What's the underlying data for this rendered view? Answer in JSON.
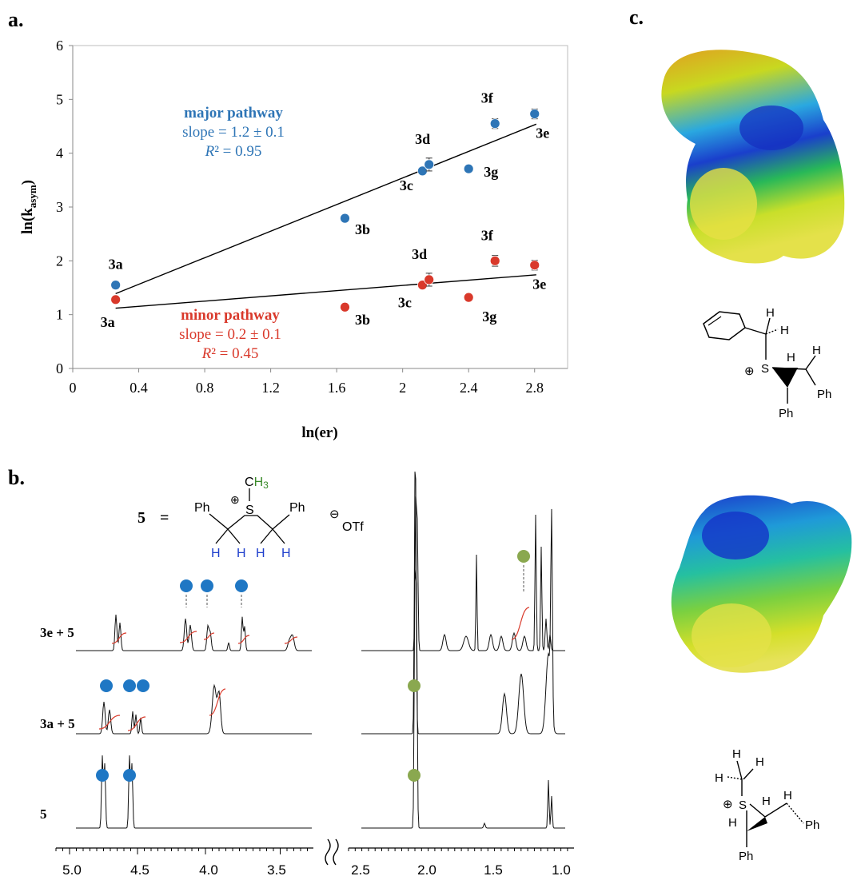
{
  "panels": {
    "a": "a.",
    "b": "b.",
    "c": "c."
  },
  "colors": {
    "major": "#2e75b6",
    "minor": "#d9392b",
    "nmr_dot_blue": "#1f77c4",
    "nmr_dot_green": "#8aa84f",
    "nmr_trace": "#111111",
    "integral": "#d93a2b"
  },
  "chart_data": [
    {
      "type": "scatter",
      "title": "",
      "xlabel": "ln(er)",
      "ylabel_main": "ln(k",
      "ylabel_sub": "asym",
      "ylabel_close": ")",
      "xlim": [
        0,
        3.0
      ],
      "ylim": [
        0,
        6
      ],
      "xticks": [
        0,
        0.4,
        0.8,
        1.2,
        1.6,
        2,
        2.4,
        2.8
      ],
      "xtick_labels": [
        "0",
        "0.4",
        "0.8",
        "1.2",
        "1.6",
        "2",
        "2.4",
        "2.8"
      ],
      "yticks": [
        0,
        1,
        2,
        3,
        4,
        5,
        6
      ],
      "ytick_labels": [
        "0",
        "1",
        "2",
        "3",
        "4",
        "5",
        "6"
      ],
      "grid": false,
      "series": [
        {
          "name": "major pathway",
          "color": "#2e75b6",
          "fit_label": "major pathway",
          "fit_slope": "slope = 1.2 ± 0.1",
          "fit_r2_prefix": "R",
          "fit_r2_suffix": "² = 0.95",
          "fit_line": {
            "x": [
              0.26,
              2.81
            ],
            "y": [
              1.39,
              4.54
            ]
          },
          "points": [
            {
              "x": 0.26,
              "y": 1.55,
              "err": 0.07,
              "label": "3a"
            },
            {
              "x": 1.65,
              "y": 2.79,
              "err": 0.05,
              "label": "3b"
            },
            {
              "x": 2.12,
              "y": 3.67,
              "err": 0.05,
              "label": "3c"
            },
            {
              "x": 2.16,
              "y": 3.79,
              "err": 0.12,
              "label": "3d"
            },
            {
              "x": 2.4,
              "y": 3.71,
              "err": 0.04,
              "label": "3g"
            },
            {
              "x": 2.56,
              "y": 4.55,
              "err": 0.09,
              "label": "3f"
            },
            {
              "x": 2.8,
              "y": 4.73,
              "err": 0.09,
              "label": "3e"
            }
          ]
        },
        {
          "name": "minor pathway",
          "color": "#d9392b",
          "fit_label": "minor pathway",
          "fit_slope": "slope = 0.2 ± 0.1",
          "fit_r2_prefix": "R",
          "fit_r2_suffix": "² = 0.45",
          "fit_line": {
            "x": [
              0.26,
              2.81
            ],
            "y": [
              1.12,
              1.74
            ]
          },
          "points": [
            {
              "x": 0.26,
              "y": 1.28,
              "err": 0.06,
              "label": "3a"
            },
            {
              "x": 1.65,
              "y": 1.14,
              "err": 0.06,
              "label": "3b"
            },
            {
              "x": 2.12,
              "y": 1.55,
              "err": 0.05,
              "label": "3c"
            },
            {
              "x": 2.16,
              "y": 1.65,
              "err": 0.12,
              "label": "3d"
            },
            {
              "x": 2.4,
              "y": 1.32,
              "err": 0.04,
              "label": "3g"
            },
            {
              "x": 2.56,
              "y": 2.0,
              "err": 0.1,
              "label": "3f"
            },
            {
              "x": 2.8,
              "y": 1.92,
              "err": 0.09,
              "label": "3e"
            }
          ]
        }
      ]
    }
  ],
  "nmr": {
    "compound_label": "5",
    "equals": "=",
    "formula": {
      "ph_left": "Ph",
      "ph_right": "Ph",
      "s_atom": "S",
      "plus": "⊕",
      "methyl_c": "C",
      "methyl_h": "H",
      "methyl_sub": "3",
      "h_labels": [
        "H",
        "H",
        "H",
        "H"
      ],
      "counterion_sign": "⊖",
      "counterion": "OTf"
    },
    "trace_labels": [
      "3e + 5",
      "3a + 5",
      "5"
    ],
    "axis_left_ticks": [
      "5.0",
      "4.5",
      "4.0",
      "3.5"
    ],
    "axis_right_ticks": [
      "2.5",
      "2.0",
      "1.5",
      "1.0"
    ]
  },
  "models": {
    "top": {
      "atoms": [
        "H",
        "H",
        "S",
        "H",
        "H",
        "Ph",
        "Ph"
      ],
      "charge": "⊕"
    },
    "bottom": {
      "atoms": [
        "H",
        "H",
        "H",
        "S",
        "H",
        "H",
        "H",
        "Ph",
        "Ph"
      ],
      "charge": "⊕"
    }
  }
}
